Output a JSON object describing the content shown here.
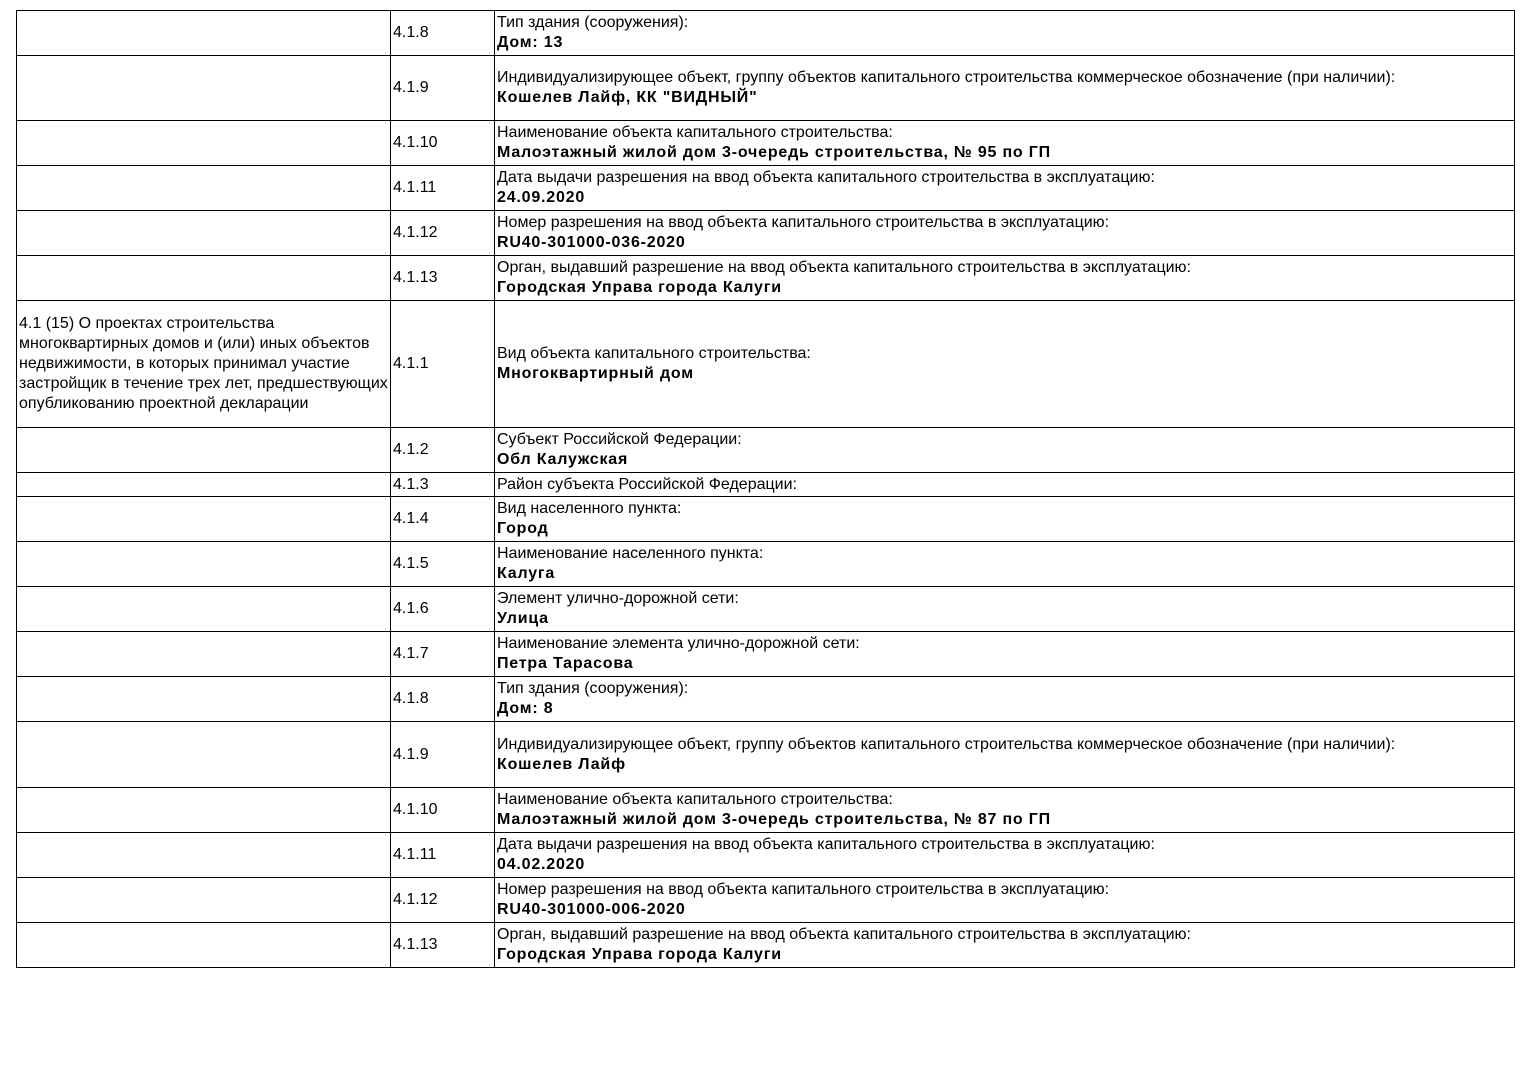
{
  "rows": [
    {
      "section": "",
      "code": "4.1.8",
      "label": "Тип здания (сооружения):",
      "value": "Дом: 13"
    },
    {
      "section": "",
      "code": "4.1.9",
      "label": "Индивидуализирующее объект, группу объектов капитального строительства коммерческое обозначение (при наличии):",
      "value": "Кошелев Лайф, КК \"ВИДНЫЙ\""
    },
    {
      "section": "",
      "code": "4.1.10",
      "label": "Наименование объекта капитального строительства:",
      "value": "Малоэтажный жилой дом 3-очередь строительства, № 95 по ГП"
    },
    {
      "section": "",
      "code": "4.1.11",
      "label": "Дата выдачи разрешения на ввод объекта капитального строительства в эксплуатацию:",
      "value": "24.09.2020"
    },
    {
      "section": "",
      "code": "4.1.12",
      "label": "Номер разрешения на ввод объекта капитального строительства в эксплуатацию:",
      "value": "RU40-301000-036-2020"
    },
    {
      "section": "",
      "code": "4.1.13",
      "label": "Орган, выдавший разрешение на ввод объекта капитального строительства в эксплуатацию:",
      "value": "Городская Управа города Калуги"
    },
    {
      "section": "4.1 (15) О проектах строительства многоквартирных домов и (или) иных объектов недвижимости, в которых принимал участие застройщик в течение трех лет, предшествующих опубликованию проектной декларации",
      "code": "4.1.1",
      "label": "Вид объекта капитального строительства:",
      "value": "Многоквартирный дом"
    },
    {
      "section": "",
      "code": "4.1.2",
      "label": "Субъект Российской Федерации:",
      "value": "Обл Калужская"
    },
    {
      "section": "",
      "code": "4.1.3",
      "label": "Район субъекта Российской Федерации:",
      "value": ""
    },
    {
      "section": "",
      "code": "4.1.4",
      "label": "Вид населенного пункта:",
      "value": "Город"
    },
    {
      "section": "",
      "code": "4.1.5",
      "label": "Наименование населенного пункта:",
      "value": "Калуга"
    },
    {
      "section": "",
      "code": "4.1.6",
      "label": "Элемент улично-дорожной сети:",
      "value": "Улица"
    },
    {
      "section": "",
      "code": "4.1.7",
      "label": "Наименование элемента улично-дорожной сети:",
      "value": "Петра Тарасова"
    },
    {
      "section": "",
      "code": "4.1.8",
      "label": "Тип здания (сооружения):",
      "value": "Дом: 8"
    },
    {
      "section": "",
      "code": "4.1.9",
      "label": "Индивидуализирующее объект, группу объектов капитального строительства коммерческое обозначение (при наличии):",
      "value": "Кошелев Лайф"
    },
    {
      "section": "",
      "code": "4.1.10",
      "label": "Наименование объекта капитального строительства:",
      "value": "Малоэтажный жилой дом 3-очередь строительства, № 87 по ГП"
    },
    {
      "section": "",
      "code": "4.1.11",
      "label": "Дата выдачи разрешения на ввод объекта капитального строительства в эксплуатацию:",
      "value": "04.02.2020"
    },
    {
      "section": "",
      "code": "4.1.12",
      "label": "Номер разрешения на ввод объекта капитального строительства в эксплуатацию:",
      "value": "RU40-301000-006-2020"
    },
    {
      "section": "",
      "code": "4.1.13",
      "label": "Орган, выдавший разрешение на ввод объекта капитального строительства в эксплуатацию:",
      "value": "Городская Управа города Калуги"
    }
  ]
}
